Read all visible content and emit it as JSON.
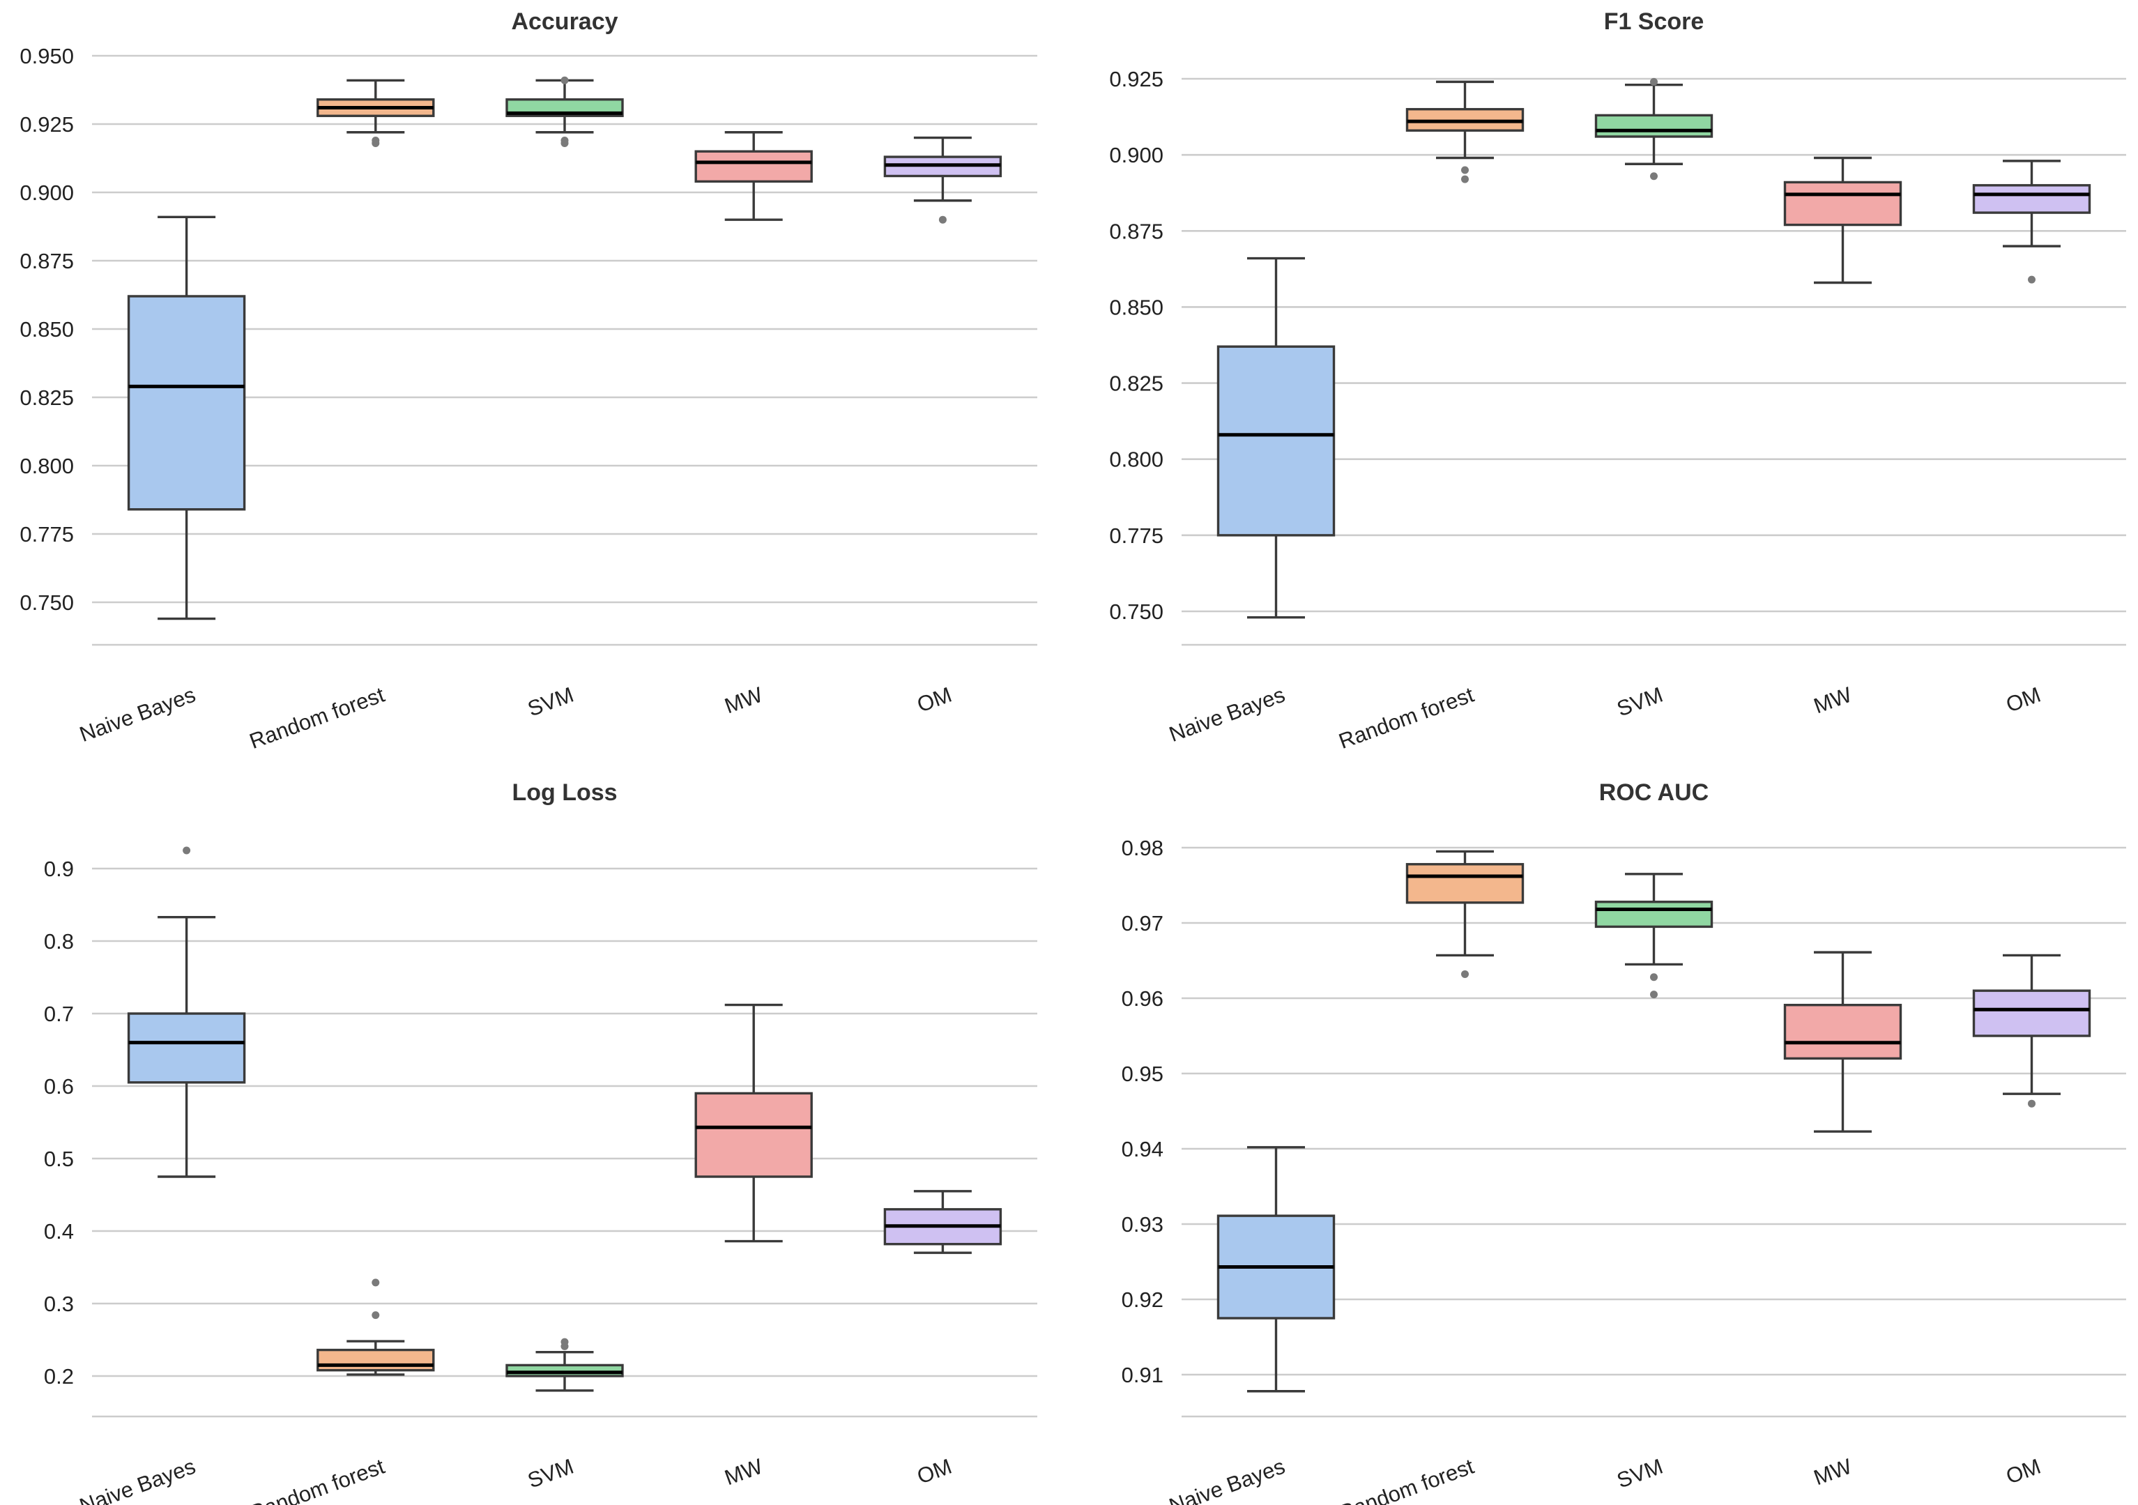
{
  "chart_data": [
    {
      "type": "box",
      "title": "Accuracy",
      "categories": [
        "Naive Bayes",
        "Random forest",
        "SVM",
        "MW",
        "OM"
      ],
      "colors": [
        "#a9c8ee",
        "#f3b78d",
        "#90d7a2",
        "#f2a9a8",
        "#cfc1f2"
      ],
      "ylim": [
        0.734,
        0.954
      ],
      "yticks": [
        0.75,
        0.775,
        0.8,
        0.825,
        0.85,
        0.875,
        0.9,
        0.925,
        0.95
      ],
      "ytick_labels": [
        "0.750",
        "0.775",
        "0.800",
        "0.825",
        "0.850",
        "0.875",
        "0.900",
        "0.925",
        "0.950"
      ],
      "boxes": [
        {
          "whislo": 0.744,
          "q1": 0.784,
          "med": 0.829,
          "q3": 0.862,
          "whishi": 0.891,
          "fliers": []
        },
        {
          "whislo": 0.922,
          "q1": 0.928,
          "med": 0.931,
          "q3": 0.934,
          "whishi": 0.941,
          "fliers": [
            0.918,
            0.919
          ]
        },
        {
          "whislo": 0.922,
          "q1": 0.928,
          "med": 0.929,
          "q3": 0.934,
          "whishi": 0.941,
          "fliers": [
            0.918,
            0.919,
            0.941
          ]
        },
        {
          "whislo": 0.89,
          "q1": 0.904,
          "med": 0.911,
          "q3": 0.915,
          "whishi": 0.922,
          "fliers": []
        },
        {
          "whislo": 0.897,
          "q1": 0.906,
          "med": 0.91,
          "q3": 0.913,
          "whishi": 0.92,
          "fliers": [
            0.89
          ]
        }
      ]
    },
    {
      "type": "box",
      "title": "F1 Score",
      "categories": [
        "Naive Bayes",
        "Random forest",
        "SVM",
        "MW",
        "OM"
      ],
      "colors": [
        "#a9c8ee",
        "#f3b78d",
        "#90d7a2",
        "#f2a9a8",
        "#cfc1f2"
      ],
      "ylim": [
        0.739,
        0.931
      ],
      "yticks": [
        0.75,
        0.775,
        0.8,
        0.825,
        0.85,
        0.875,
        0.9,
        0.925
      ],
      "ytick_labels": [
        "0.750",
        "0.775",
        "0.800",
        "0.825",
        "0.850",
        "0.875",
        "0.900",
        "0.925"
      ],
      "boxes": [
        {
          "whislo": 0.748,
          "q1": 0.775,
          "med": 0.808,
          "q3": 0.837,
          "whishi": 0.866,
          "fliers": []
        },
        {
          "whislo": 0.899,
          "q1": 0.908,
          "med": 0.911,
          "q3": 0.915,
          "whishi": 0.924,
          "fliers": [
            0.892,
            0.895
          ]
        },
        {
          "whislo": 0.897,
          "q1": 0.906,
          "med": 0.908,
          "q3": 0.913,
          "whishi": 0.923,
          "fliers": [
            0.893,
            0.924
          ]
        },
        {
          "whislo": 0.858,
          "q1": 0.877,
          "med": 0.887,
          "q3": 0.891,
          "whishi": 0.899,
          "fliers": []
        },
        {
          "whislo": 0.87,
          "q1": 0.881,
          "med": 0.887,
          "q3": 0.89,
          "whishi": 0.898,
          "fliers": [
            0.859
          ]
        }
      ]
    },
    {
      "type": "box",
      "title": "Log Loss",
      "categories": [
        "Naive Bayes",
        "Random forest",
        "SVM",
        "MW",
        "OM"
      ],
      "colors": [
        "#a9c8ee",
        "#f3b78d",
        "#90d7a2",
        "#f2a9a8",
        "#cfc1f2"
      ],
      "ylim": [
        0.145,
        0.953
      ],
      "yticks": [
        0.2,
        0.3,
        0.4,
        0.5,
        0.6,
        0.7,
        0.8,
        0.9
      ],
      "ytick_labels": [
        "0.2",
        "0.3",
        "0.4",
        "0.5",
        "0.6",
        "0.7",
        "0.8",
        "0.9"
      ],
      "boxes": [
        {
          "whislo": 0.475,
          "q1": 0.605,
          "med": 0.66,
          "q3": 0.7,
          "whishi": 0.833,
          "fliers": [
            0.925
          ]
        },
        {
          "whislo": 0.202,
          "q1": 0.208,
          "med": 0.215,
          "q3": 0.236,
          "whishi": 0.248,
          "fliers": [
            0.284,
            0.329
          ]
        },
        {
          "whislo": 0.18,
          "q1": 0.2,
          "med": 0.205,
          "q3": 0.215,
          "whishi": 0.233,
          "fliers": [
            0.241,
            0.247
          ]
        },
        {
          "whislo": 0.386,
          "q1": 0.475,
          "med": 0.543,
          "q3": 0.59,
          "whishi": 0.712,
          "fliers": []
        },
        {
          "whislo": 0.37,
          "q1": 0.382,
          "med": 0.407,
          "q3": 0.43,
          "whishi": 0.455,
          "fliers": []
        }
      ]
    },
    {
      "type": "box",
      "title": "ROC AUC",
      "categories": [
        "Naive Bayes",
        "Random forest",
        "SVM",
        "MW",
        "OM"
      ],
      "colors": [
        "#a9c8ee",
        "#f3b78d",
        "#90d7a2",
        "#f2a9a8",
        "#cfc1f2"
      ],
      "ylim": [
        0.9042,
        0.9822
      ],
      "yticks": [
        0.91,
        0.92,
        0.93,
        0.94,
        0.95,
        0.96,
        0.97,
        0.98
      ],
      "ytick_labels": [
        "0.91",
        "0.92",
        "0.93",
        "0.94",
        "0.95",
        "0.96",
        "0.97",
        "0.98"
      ],
      "boxes": [
        {
          "whislo": 0.9078,
          "q1": 0.9175,
          "med": 0.9243,
          "q3": 0.9311,
          "whishi": 0.9402,
          "fliers": []
        },
        {
          "whislo": 0.9657,
          "q1": 0.9727,
          "med": 0.9762,
          "q3": 0.9778,
          "whishi": 0.9795,
          "fliers": [
            0.9632
          ]
        },
        {
          "whislo": 0.9645,
          "q1": 0.9695,
          "med": 0.9718,
          "q3": 0.9728,
          "whishi": 0.9765,
          "fliers": [
            0.9605,
            0.9628
          ]
        },
        {
          "whislo": 0.9423,
          "q1": 0.952,
          "med": 0.9541,
          "q3": 0.9591,
          "whishi": 0.9661,
          "fliers": []
        },
        {
          "whislo": 0.9473,
          "q1": 0.955,
          "med": 0.9585,
          "q3": 0.961,
          "whishi": 0.9657,
          "fliers": [
            0.946
          ]
        }
      ]
    }
  ]
}
